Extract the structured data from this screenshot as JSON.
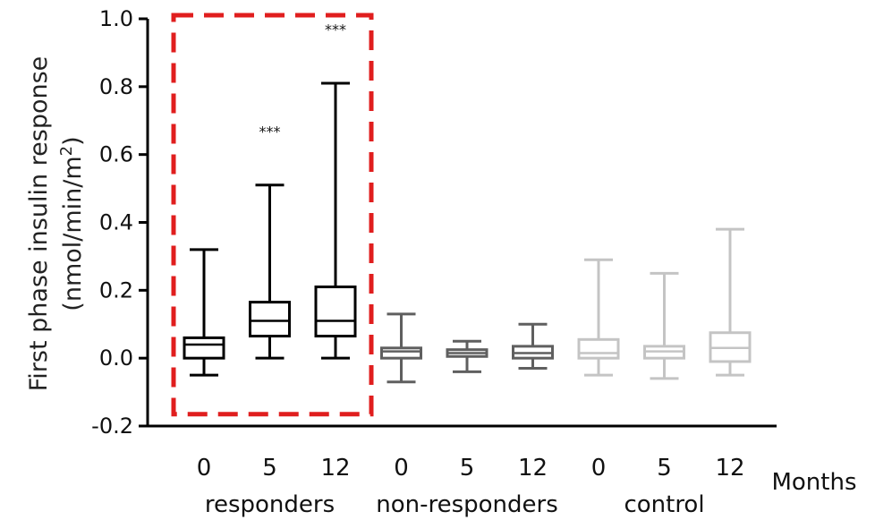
{
  "chart_data": {
    "type": "boxplot",
    "ylabel_line1": "First phase insulin response",
    "ylabel_line2_base": "(nmol/min/m",
    "ylabel_line2_sup": "2",
    "ylabel_line2_end": ")",
    "xlabel": "Months",
    "ylim": [
      -0.2,
      1.0
    ],
    "yticks": [
      "-0.2",
      "0.0",
      "0.2",
      "0.4",
      "0.6",
      "0.8",
      "1.0"
    ],
    "ytick_values": [
      -0.2,
      0.0,
      0.2,
      0.4,
      0.6,
      0.8,
      1.0
    ],
    "groups": [
      {
        "name": "responders",
        "color": "#000000",
        "highlighted": true
      },
      {
        "name": "non-responders",
        "color": "#5f5f5f",
        "highlighted": false
      },
      {
        "name": "control",
        "color": "#c4c4c4",
        "highlighted": false
      }
    ],
    "boxes": [
      {
        "group": 0,
        "month": "0",
        "min": -0.05,
        "q1": 0.0,
        "median": 0.04,
        "q3": 0.06,
        "max": 0.32,
        "sig": ""
      },
      {
        "group": 0,
        "month": "5",
        "min": 0.0,
        "q1": 0.065,
        "median": 0.11,
        "q3": 0.165,
        "max": 0.51,
        "sig": "***",
        "sig_y": 0.68
      },
      {
        "group": 0,
        "month": "12",
        "min": 0.0,
        "q1": 0.065,
        "median": 0.11,
        "q3": 0.21,
        "max": 0.81,
        "sig": "***",
        "sig_y": 0.98
      },
      {
        "group": 1,
        "month": "0",
        "min": -0.07,
        "q1": 0.0,
        "median": 0.02,
        "q3": 0.03,
        "max": 0.13,
        "sig": ""
      },
      {
        "group": 1,
        "month": "5",
        "min": -0.04,
        "q1": 0.005,
        "median": 0.015,
        "q3": 0.025,
        "max": 0.05,
        "sig": ""
      },
      {
        "group": 1,
        "month": "12",
        "min": -0.03,
        "q1": 0.0,
        "median": 0.015,
        "q3": 0.035,
        "max": 0.1,
        "sig": ""
      },
      {
        "group": 2,
        "month": "0",
        "min": -0.05,
        "q1": 0.0,
        "median": 0.015,
        "q3": 0.055,
        "max": 0.29,
        "sig": ""
      },
      {
        "group": 2,
        "month": "5",
        "min": -0.06,
        "q1": 0.0,
        "median": 0.02,
        "q3": 0.035,
        "max": 0.25,
        "sig": ""
      },
      {
        "group": 2,
        "month": "12",
        "min": -0.05,
        "q1": -0.01,
        "median": 0.03,
        "q3": 0.075,
        "max": 0.38,
        "sig": ""
      }
    ],
    "highlight_box": {
      "color": "#e01e1e",
      "y_top": 1.0,
      "y_bottom": -0.165
    }
  }
}
